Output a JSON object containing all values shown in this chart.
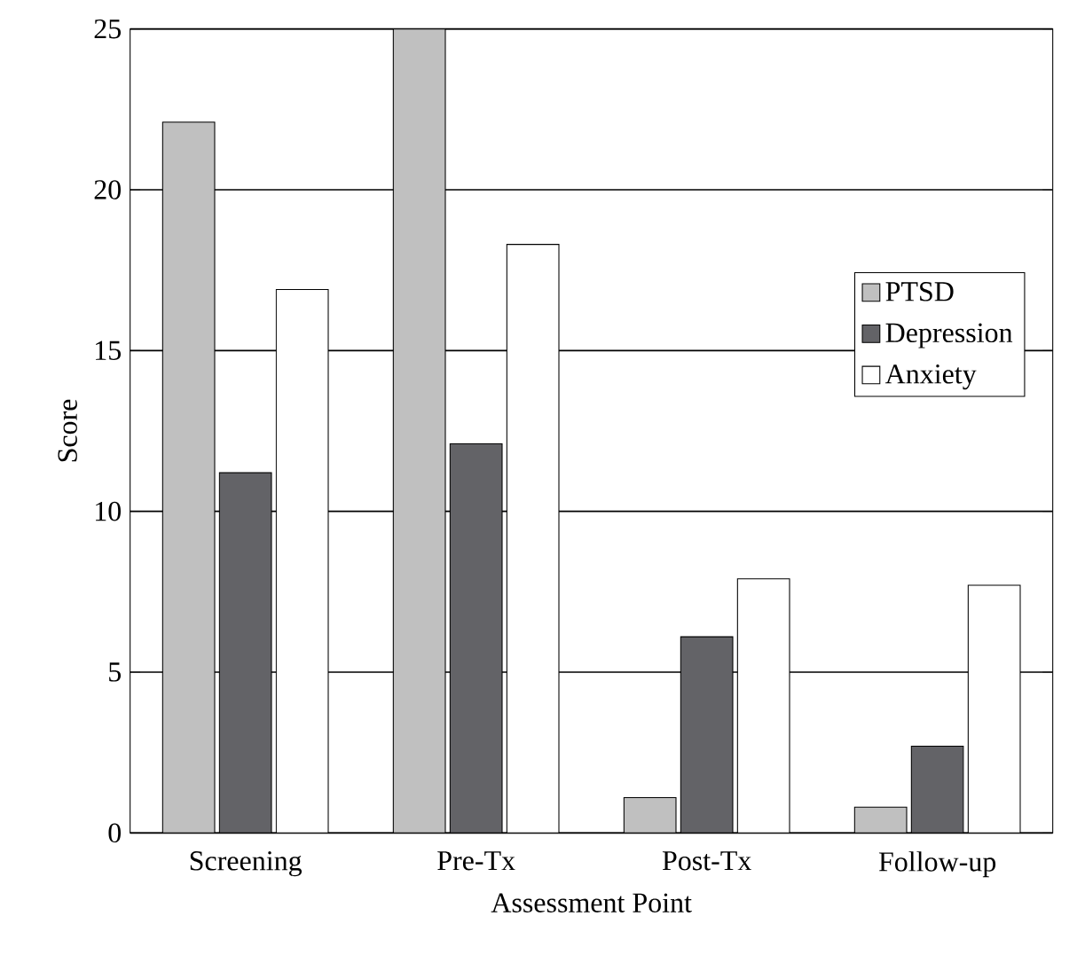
{
  "chart_data": {
    "type": "bar",
    "xlabel": "Assessment Point",
    "ylabel": "Score",
    "categories": [
      "Screening",
      "Pre-Tx",
      "Post-Tx",
      "Follow-up"
    ],
    "series": [
      {
        "name": "PTSD",
        "color": "#c0c0c0",
        "values": [
          22.1,
          25.0,
          1.1,
          0.8
        ]
      },
      {
        "name": "Depression",
        "color": "#636367",
        "values": [
          11.2,
          12.1,
          6.1,
          2.7
        ]
      },
      {
        "name": "Anxiety",
        "color": "#ffffff",
        "values": [
          16.9,
          18.3,
          7.9,
          7.7
        ]
      }
    ],
    "ylim": [
      0,
      25
    ],
    "yticks": [
      0,
      5,
      10,
      15,
      20,
      25
    ],
    "grid": "y",
    "legend": "right"
  }
}
